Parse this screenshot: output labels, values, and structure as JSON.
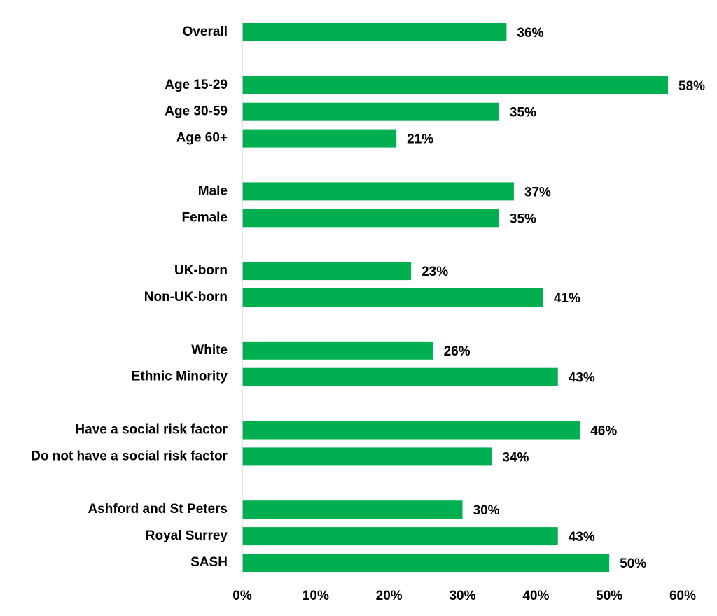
{
  "chart_data": {
    "type": "bar",
    "orientation": "horizontal",
    "title": "",
    "xlabel": "",
    "ylabel": "",
    "xlim": [
      0,
      60
    ],
    "grid": false,
    "legend": "none",
    "bar_color": "#00B050",
    "axis_color": "#D9D9D9",
    "ticks": [
      0,
      10,
      20,
      30,
      40,
      50,
      60
    ],
    "tick_labels": [
      "0%",
      "10%",
      "20%",
      "30%",
      "40%",
      "50%",
      "60%"
    ],
    "groups": [
      {
        "bars": [
          {
            "label": "Overall",
            "value": 36,
            "value_label": "36%"
          }
        ]
      },
      {
        "bars": [
          {
            "label": "Age 15-29",
            "value": 58,
            "value_label": "58%"
          },
          {
            "label": "Age 30-59",
            "value": 35,
            "value_label": "35%"
          },
          {
            "label": "Age 60+",
            "value": 21,
            "value_label": "21%"
          }
        ]
      },
      {
        "bars": [
          {
            "label": "Male",
            "value": 37,
            "value_label": "37%"
          },
          {
            "label": "Female",
            "value": 35,
            "value_label": "35%"
          }
        ]
      },
      {
        "bars": [
          {
            "label": "UK-born",
            "value": 23,
            "value_label": "23%"
          },
          {
            "label": "Non-UK-born",
            "value": 41,
            "value_label": "41%"
          }
        ]
      },
      {
        "bars": [
          {
            "label": "White",
            "value": 26,
            "value_label": "26%"
          },
          {
            "label": "Ethnic Minority",
            "value": 43,
            "value_label": "43%"
          }
        ]
      },
      {
        "bars": [
          {
            "label": "Have a social risk factor",
            "value": 46,
            "value_label": "46%"
          },
          {
            "label": "Do not have a social risk factor",
            "value": 34,
            "value_label": "34%"
          }
        ]
      },
      {
        "bars": [
          {
            "label": "Ashford and St Peters",
            "value": 30,
            "value_label": "30%"
          },
          {
            "label": "Royal Surrey",
            "value": 43,
            "value_label": "43%"
          },
          {
            "label": "SASH",
            "value": 50,
            "value_label": "50%"
          }
        ]
      }
    ]
  }
}
